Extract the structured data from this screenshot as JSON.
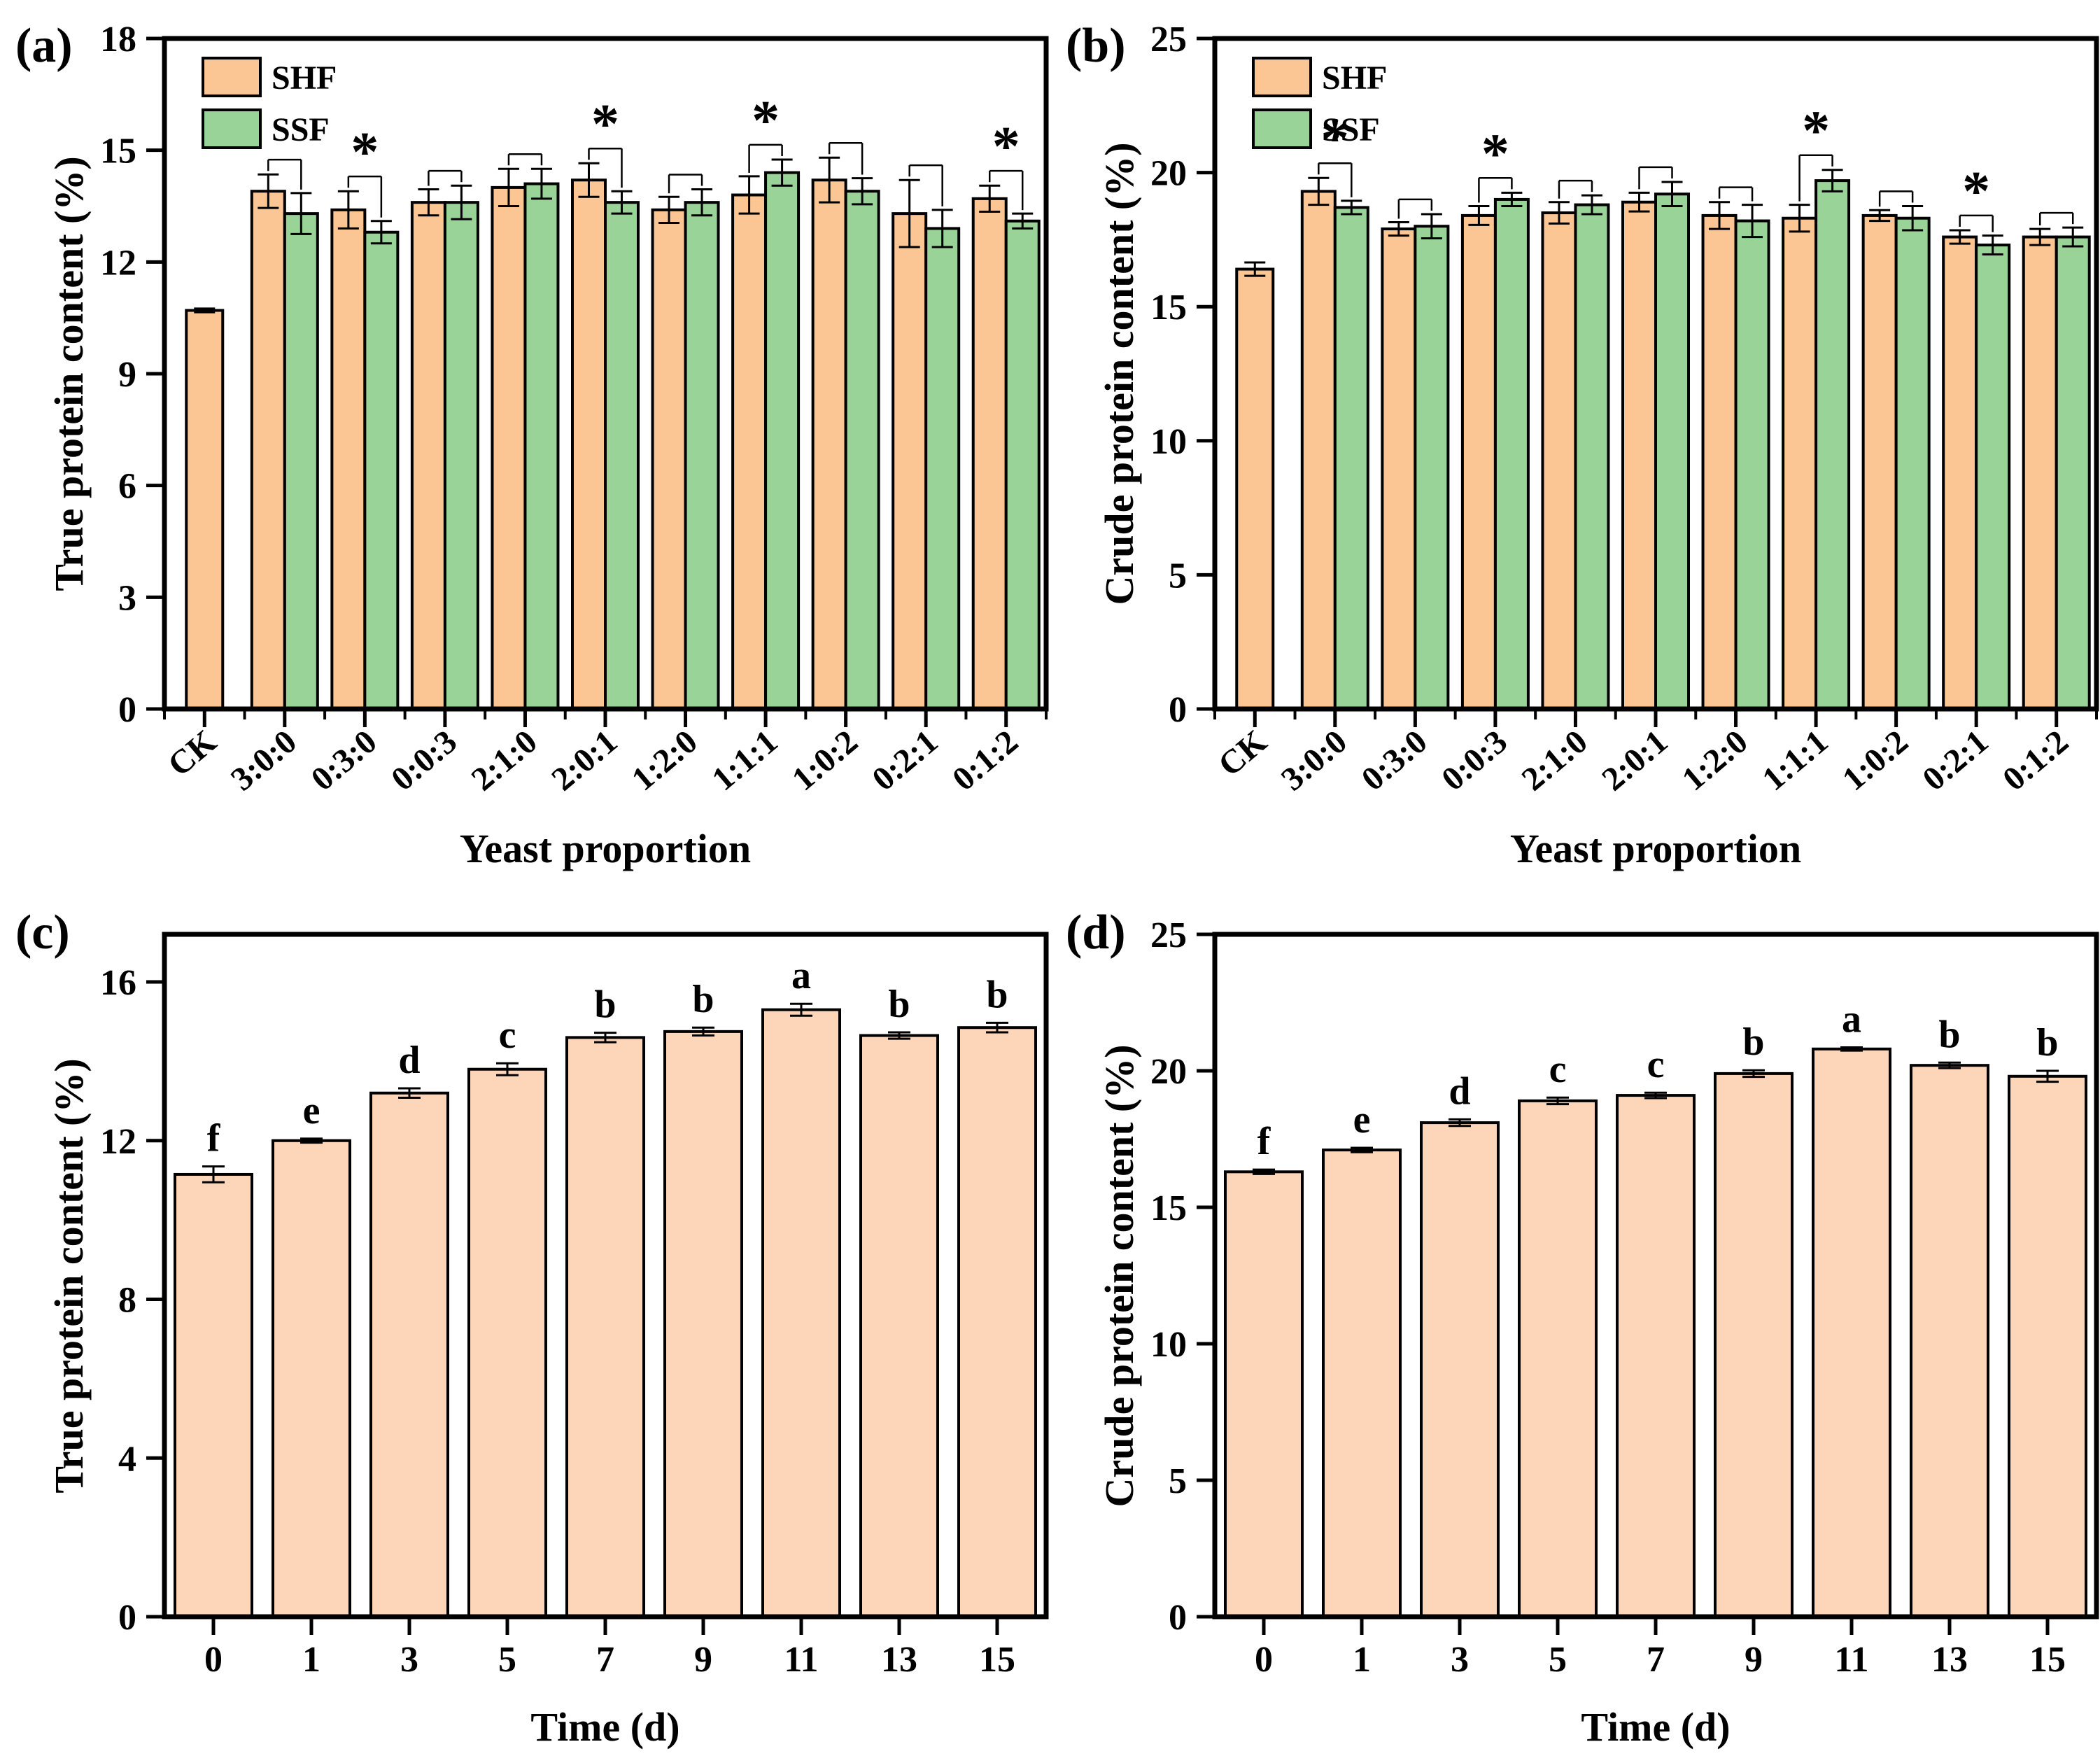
{
  "colors": {
    "shf": "#FBC693",
    "ssf": "#9AD398",
    "single": "#FDD5B8",
    "axis": "#000000"
  },
  "chart_data": [
    {
      "panel": "(a)",
      "type": "bar",
      "title": "",
      "ylabel": "True protein content (%)",
      "xlabel": "Yeast proportion",
      "ylim": [
        0,
        18
      ],
      "yticks": [
        0,
        3,
        6,
        9,
        12,
        15,
        18
      ],
      "grid": false,
      "legend_position": "top-left",
      "legend": [
        "SHF",
        "SSF"
      ],
      "categories": [
        "CK",
        "3:0:0",
        "0:3:0",
        "0:0:3",
        "2:1:0",
        "2:0:1",
        "1:2:0",
        "1:1:1",
        "1:0:2",
        "0:2:1",
        "0:1:2"
      ],
      "series": [
        {
          "name": "SHF",
          "values": [
            10.7,
            13.9,
            13.4,
            13.6,
            14.0,
            14.2,
            13.4,
            13.8,
            14.2,
            13.3,
            13.7
          ],
          "errors": [
            0.05,
            0.45,
            0.5,
            0.35,
            0.5,
            0.45,
            0.35,
            0.5,
            0.6,
            0.9,
            0.35
          ]
        },
        {
          "name": "SSF",
          "values": [
            null,
            13.3,
            12.8,
            13.6,
            14.1,
            13.6,
            13.6,
            14.4,
            13.9,
            12.9,
            13.1
          ],
          "errors": [
            null,
            0.55,
            0.3,
            0.45,
            0.4,
            0.3,
            0.35,
            0.35,
            0.35,
            0.5,
            0.2
          ]
        }
      ],
      "sig": [
        null,
        "",
        "*",
        "",
        "",
        "*",
        "",
        "*",
        "",
        "",
        "*"
      ]
    },
    {
      "panel": "(b)",
      "type": "bar",
      "title": "",
      "ylabel": "Crude protein content (%)",
      "xlabel": "Yeast proportion",
      "ylim": [
        0,
        25
      ],
      "yticks": [
        0,
        5,
        10,
        15,
        20,
        25
      ],
      "grid": false,
      "legend_position": "top-left",
      "legend": [
        "SHF",
        "SSF"
      ],
      "categories": [
        "CK",
        "3:0:0",
        "0:3:0",
        "0:0:3",
        "2:1:0",
        "2:0:1",
        "1:2:0",
        "1:1:1",
        "1:0:2",
        "0:2:1",
        "0:1:2"
      ],
      "series": [
        {
          "name": "SHF",
          "values": [
            16.4,
            19.3,
            17.9,
            18.4,
            18.5,
            18.9,
            18.4,
            18.3,
            18.4,
            17.6,
            17.6
          ],
          "errors": [
            0.25,
            0.5,
            0.25,
            0.35,
            0.4,
            0.35,
            0.5,
            0.5,
            0.2,
            0.25,
            0.3
          ]
        },
        {
          "name": "SSF",
          "values": [
            null,
            18.7,
            18.0,
            19.0,
            18.8,
            19.2,
            18.2,
            19.7,
            18.3,
            17.3,
            17.6
          ],
          "errors": [
            null,
            0.25,
            0.45,
            0.25,
            0.35,
            0.45,
            0.6,
            0.4,
            0.45,
            0.35,
            0.35
          ]
        }
      ],
      "sig": [
        null,
        "*",
        "",
        "*",
        "",
        "",
        "",
        "*",
        "",
        "*",
        ""
      ]
    },
    {
      "panel": "(c)",
      "type": "bar",
      "title": "",
      "ylabel": "True protein content (%)",
      "xlabel": "Time (d)",
      "ylim": [
        0,
        17.2
      ],
      "yticks": [
        0,
        4,
        8,
        12,
        16
      ],
      "grid": false,
      "categories": [
        "0",
        "1",
        "3",
        "5",
        "7",
        "9",
        "11",
        "13",
        "15"
      ],
      "values": [
        11.15,
        12.0,
        13.2,
        13.8,
        14.6,
        14.75,
        15.3,
        14.65,
        14.85
      ],
      "errors": [
        0.2,
        0.05,
        0.12,
        0.15,
        0.12,
        0.1,
        0.15,
        0.08,
        0.12
      ],
      "letters": [
        "f",
        "e",
        "d",
        "c",
        "b",
        "b",
        "a",
        "b",
        "b"
      ]
    },
    {
      "panel": "(d)",
      "type": "bar",
      "title": "",
      "ylabel": "Crude protein content (%)",
      "xlabel": "Time (d)",
      "ylim": [
        0,
        25
      ],
      "yticks": [
        0,
        5,
        10,
        15,
        20,
        25
      ],
      "grid": false,
      "categories": [
        "0",
        "1",
        "3",
        "5",
        "7",
        "9",
        "11",
        "13",
        "15"
      ],
      "values": [
        16.3,
        17.1,
        18.1,
        18.9,
        19.1,
        19.9,
        20.8,
        20.2,
        19.8
      ],
      "errors": [
        0.08,
        0.08,
        0.12,
        0.12,
        0.1,
        0.12,
        0.06,
        0.1,
        0.2
      ],
      "letters": [
        "f",
        "e",
        "d",
        "c",
        "c",
        "b",
        "a",
        "b",
        "b"
      ]
    }
  ]
}
